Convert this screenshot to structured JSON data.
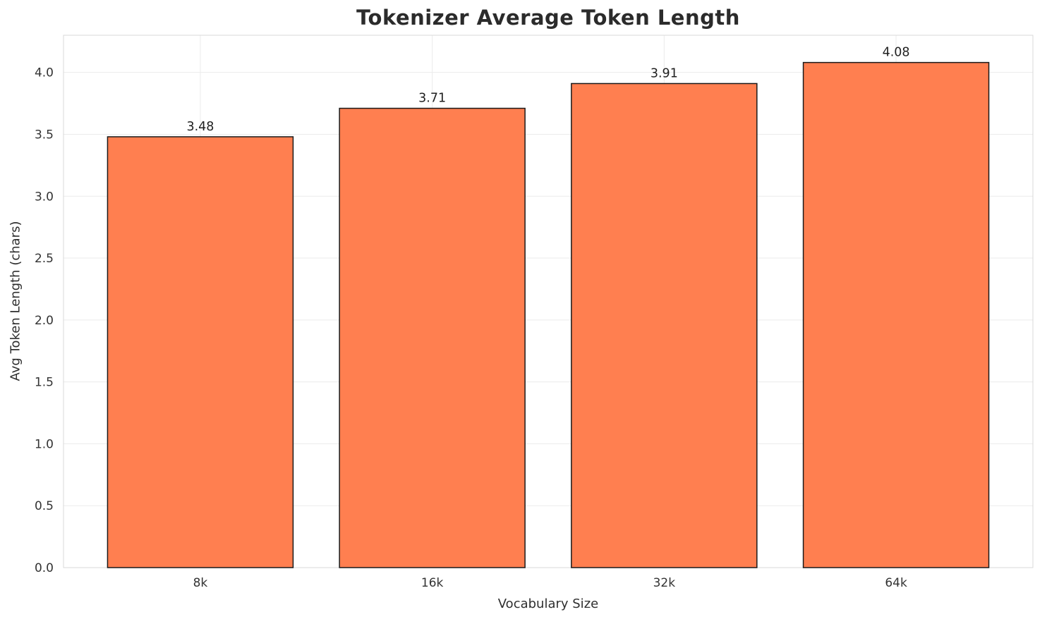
{
  "chart_data": {
    "type": "bar",
    "title": "Tokenizer Average Token Length",
    "xlabel": "Vocabulary Size",
    "ylabel": "Avg Token Length (chars)",
    "categories": [
      "8k",
      "16k",
      "32k",
      "64k"
    ],
    "values": [
      3.48,
      3.71,
      3.91,
      4.08
    ],
    "value_labels": [
      "3.48",
      "3.71",
      "3.91",
      "4.08"
    ],
    "ylim": [
      0,
      4.3
    ],
    "ytick_step": 0.5,
    "ytick_labels": [
      "0.0",
      "0.5",
      "1.0",
      "1.5",
      "2.0",
      "2.5",
      "3.0",
      "3.5",
      "4.0"
    ],
    "grid": true,
    "legend_visible": false,
    "bar_color": "#FF7F50",
    "bar_edge_color": "#1a1a1a",
    "grid_color": "#ebebeb",
    "border_color": "#d9d9d9",
    "tick_label_color": "#333333",
    "value_label_color": "#1f1f1f"
  }
}
